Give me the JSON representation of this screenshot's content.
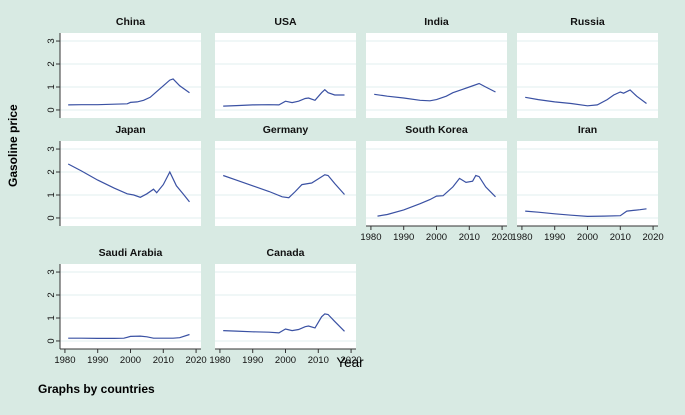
{
  "figure": {
    "background_color": "#d8eae3",
    "plot_background": "#ffffff",
    "line_color": "#3a51a3",
    "grid_color": "#e2efef",
    "axis_color": "#333333"
  },
  "chart_data": {
    "type": "line",
    "xlabel": "Year",
    "ylabel": "Gasoline price",
    "note": "Graphs by countries",
    "legend": "none",
    "grid": true,
    "x_ticks": [
      1980,
      1990,
      2000,
      2010,
      2020
    ],
    "y_ticks": [
      0,
      1,
      2,
      3
    ],
    "xlim": [
      1978.5,
      2021.5
    ],
    "ylim": [
      -0.35,
      3.35
    ],
    "panels": [
      {
        "title": "China",
        "row": 0,
        "col": 0,
        "y_axis": true,
        "x_axis": false,
        "points": [
          [
            1981,
            0.22
          ],
          [
            1985,
            0.23
          ],
          [
            1990,
            0.23
          ],
          [
            1995,
            0.25
          ],
          [
            1999,
            0.27
          ],
          [
            2000,
            0.33
          ],
          [
            2002,
            0.35
          ],
          [
            2004,
            0.42
          ],
          [
            2006,
            0.55
          ],
          [
            2008,
            0.8
          ],
          [
            2010,
            1.05
          ],
          [
            2012,
            1.3
          ],
          [
            2013,
            1.35
          ],
          [
            2015,
            1.05
          ],
          [
            2018,
            0.75
          ]
        ]
      },
      {
        "title": "USA",
        "row": 0,
        "col": 1,
        "y_axis": false,
        "x_axis": false,
        "points": [
          [
            1981,
            0.17
          ],
          [
            1985,
            0.19
          ],
          [
            1990,
            0.22
          ],
          [
            1995,
            0.23
          ],
          [
            1998,
            0.22
          ],
          [
            2000,
            0.38
          ],
          [
            2002,
            0.32
          ],
          [
            2004,
            0.38
          ],
          [
            2006,
            0.5
          ],
          [
            2007,
            0.52
          ],
          [
            2009,
            0.42
          ],
          [
            2011,
            0.75
          ],
          [
            2012,
            0.88
          ],
          [
            2013,
            0.75
          ],
          [
            2015,
            0.65
          ],
          [
            2018,
            0.65
          ]
        ]
      },
      {
        "title": "India",
        "row": 0,
        "col": 2,
        "y_axis": false,
        "x_axis": false,
        "points": [
          [
            1981,
            0.68
          ],
          [
            1985,
            0.6
          ],
          [
            1990,
            0.52
          ],
          [
            1995,
            0.42
          ],
          [
            1998,
            0.4
          ],
          [
            2000,
            0.45
          ],
          [
            2003,
            0.6
          ],
          [
            2005,
            0.75
          ],
          [
            2008,
            0.9
          ],
          [
            2010,
            1.0
          ],
          [
            2013,
            1.15
          ],
          [
            2015,
            1.0
          ],
          [
            2018,
            0.78
          ]
        ]
      },
      {
        "title": "Russia",
        "row": 0,
        "col": 3,
        "y_axis": false,
        "x_axis": false,
        "points": [
          [
            1981,
            0.55
          ],
          [
            1985,
            0.45
          ],
          [
            1990,
            0.35
          ],
          [
            1995,
            0.28
          ],
          [
            2000,
            0.18
          ],
          [
            2003,
            0.22
          ],
          [
            2006,
            0.45
          ],
          [
            2008,
            0.65
          ],
          [
            2010,
            0.78
          ],
          [
            2011,
            0.73
          ],
          [
            2013,
            0.87
          ],
          [
            2015,
            0.6
          ],
          [
            2018,
            0.28
          ]
        ]
      },
      {
        "title": "Japan",
        "row": 1,
        "col": 0,
        "y_axis": true,
        "x_axis": false,
        "points": [
          [
            1981,
            2.35
          ],
          [
            1985,
            2.05
          ],
          [
            1990,
            1.65
          ],
          [
            1995,
            1.3
          ],
          [
            1999,
            1.05
          ],
          [
            2001,
            1.0
          ],
          [
            2003,
            0.9
          ],
          [
            2005,
            1.05
          ],
          [
            2007,
            1.25
          ],
          [
            2008,
            1.1
          ],
          [
            2010,
            1.45
          ],
          [
            2012,
            2.0
          ],
          [
            2014,
            1.4
          ],
          [
            2016,
            1.05
          ],
          [
            2018,
            0.7
          ]
        ]
      },
      {
        "title": "Germany",
        "row": 1,
        "col": 1,
        "y_axis": false,
        "x_axis": false,
        "points": [
          [
            1981,
            1.85
          ],
          [
            1985,
            1.65
          ],
          [
            1990,
            1.4
          ],
          [
            1995,
            1.15
          ],
          [
            1999,
            0.92
          ],
          [
            2001,
            0.88
          ],
          [
            2003,
            1.15
          ],
          [
            2005,
            1.45
          ],
          [
            2007,
            1.5
          ],
          [
            2008,
            1.52
          ],
          [
            2010,
            1.7
          ],
          [
            2012,
            1.88
          ],
          [
            2013,
            1.85
          ],
          [
            2015,
            1.5
          ],
          [
            2018,
            1.02
          ]
        ]
      },
      {
        "title": "South Korea",
        "row": 1,
        "col": 2,
        "y_axis": false,
        "x_axis": true,
        "points": [
          [
            1982,
            0.08
          ],
          [
            1985,
            0.15
          ],
          [
            1990,
            0.35
          ],
          [
            1995,
            0.62
          ],
          [
            1998,
            0.8
          ],
          [
            2000,
            0.95
          ],
          [
            2002,
            0.97
          ],
          [
            2005,
            1.35
          ],
          [
            2007,
            1.72
          ],
          [
            2009,
            1.55
          ],
          [
            2011,
            1.6
          ],
          [
            2012,
            1.85
          ],
          [
            2013,
            1.8
          ],
          [
            2015,
            1.35
          ],
          [
            2018,
            0.92
          ]
        ]
      },
      {
        "title": "Iran",
        "row": 1,
        "col": 3,
        "y_axis": false,
        "x_axis": true,
        "points": [
          [
            1981,
            0.3
          ],
          [
            1985,
            0.25
          ],
          [
            1990,
            0.18
          ],
          [
            1995,
            0.12
          ],
          [
            2000,
            0.07
          ],
          [
            2005,
            0.08
          ],
          [
            2010,
            0.1
          ],
          [
            2012,
            0.3
          ],
          [
            2014,
            0.33
          ],
          [
            2016,
            0.36
          ],
          [
            2018,
            0.4
          ]
        ]
      },
      {
        "title": "Saudi Arabia",
        "row": 2,
        "col": 0,
        "y_axis": true,
        "x_axis": true,
        "points": [
          [
            1981,
            0.12
          ],
          [
            1985,
            0.12
          ],
          [
            1990,
            0.11
          ],
          [
            1995,
            0.11
          ],
          [
            1998,
            0.12
          ],
          [
            2000,
            0.2
          ],
          [
            2003,
            0.21
          ],
          [
            2005,
            0.18
          ],
          [
            2007,
            0.12
          ],
          [
            2010,
            0.12
          ],
          [
            2013,
            0.12
          ],
          [
            2015,
            0.14
          ],
          [
            2018,
            0.28
          ]
        ]
      },
      {
        "title": "Canada",
        "row": 2,
        "col": 1,
        "y_axis": false,
        "x_axis": true,
        "points": [
          [
            1981,
            0.45
          ],
          [
            1985,
            0.43
          ],
          [
            1990,
            0.4
          ],
          [
            1995,
            0.38
          ],
          [
            1998,
            0.35
          ],
          [
            2000,
            0.52
          ],
          [
            2002,
            0.45
          ],
          [
            2004,
            0.5
          ],
          [
            2006,
            0.62
          ],
          [
            2007,
            0.65
          ],
          [
            2009,
            0.57
          ],
          [
            2011,
            1.05
          ],
          [
            2012,
            1.18
          ],
          [
            2013,
            1.15
          ],
          [
            2015,
            0.85
          ],
          [
            2018,
            0.42
          ]
        ]
      }
    ]
  }
}
